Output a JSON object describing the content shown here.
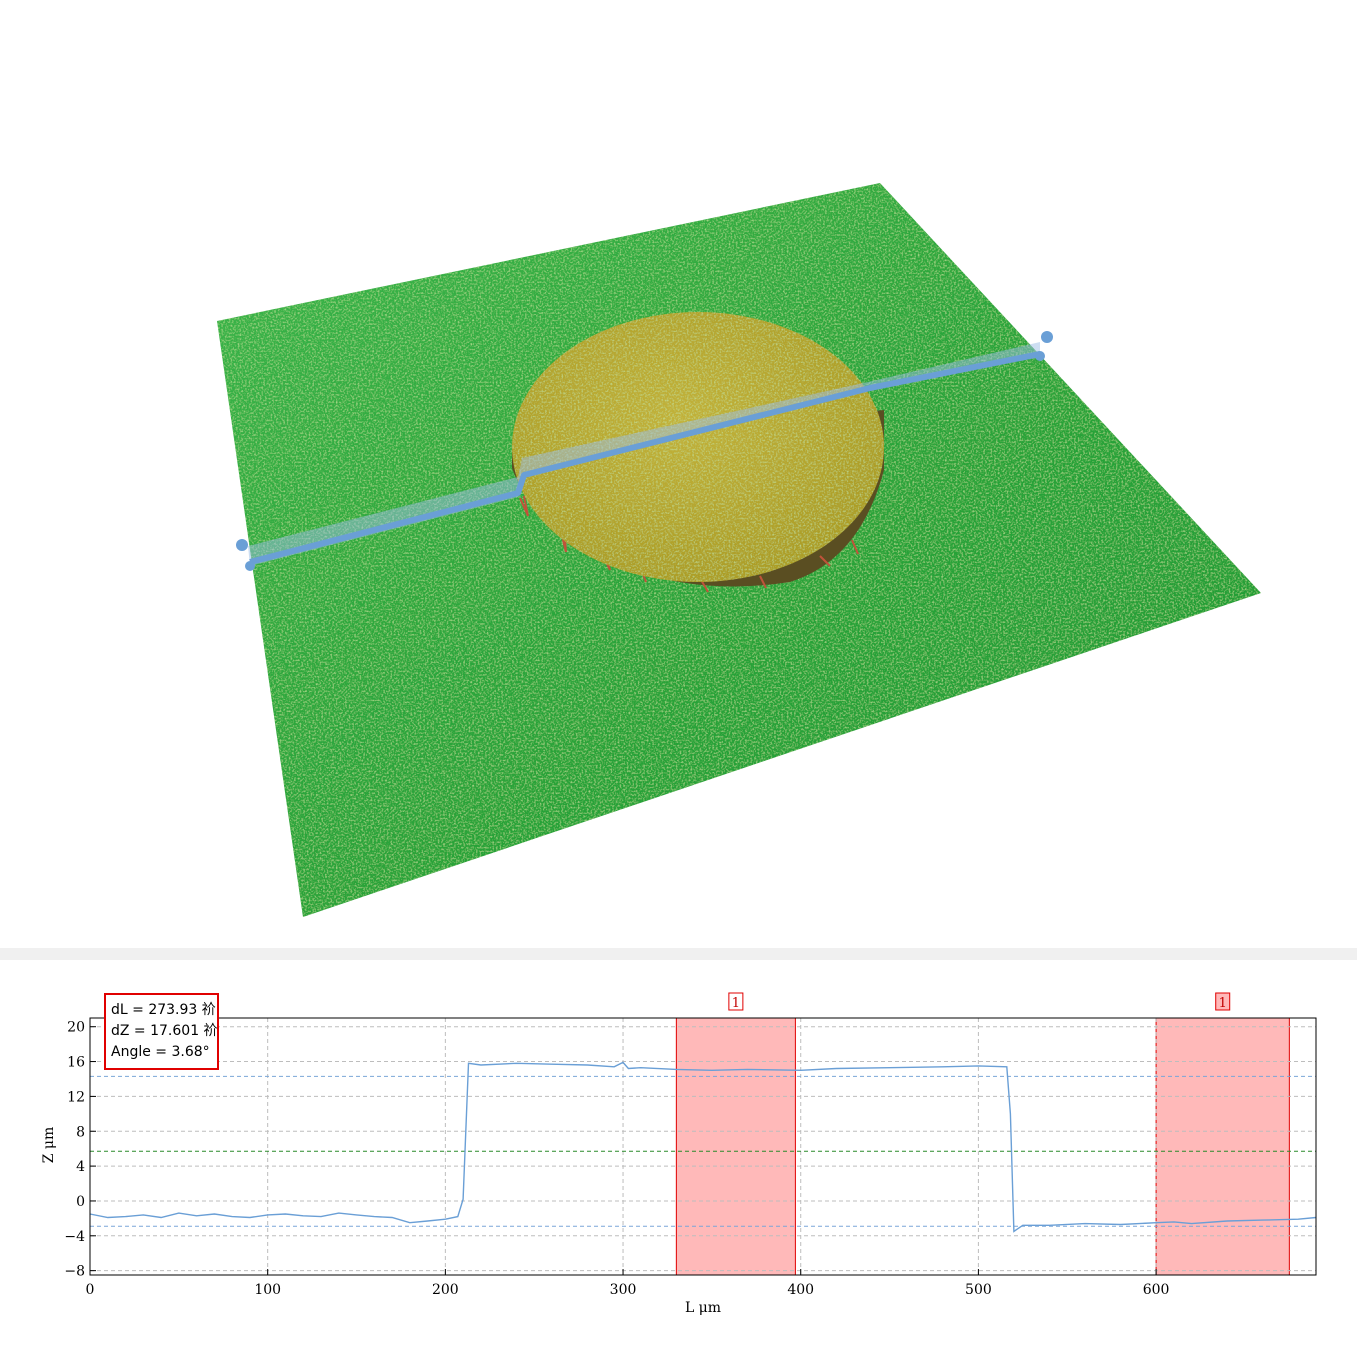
{
  "measurement": {
    "dL": "dL = 273.93 祄",
    "dZ": "dZ = 17.601 祄",
    "angle": "Angle = 3.68°"
  },
  "colors": {
    "surface_green": "#2aa43a",
    "pad_yellow": "#b5a52a",
    "profile_line": "#6a9fd6",
    "reference_band": "#ffb9b9",
    "reference_border": "#e00000",
    "mean_line": "#2a8a2a"
  },
  "chart_data": {
    "type": "line",
    "xlabel": "L  μm",
    "ylabel": "Z  μm",
    "xlim": [
      0,
      690
    ],
    "ylim": [
      -8.5,
      21
    ],
    "x_ticks": [
      "0",
      "100",
      "200",
      "300",
      "400",
      "500",
      "600"
    ],
    "y_ticks": [
      "20",
      "16",
      "12",
      "8",
      "4",
      "0",
      "−4",
      "−8"
    ],
    "grid": true,
    "series": [
      {
        "x": [
          0,
          10,
          20,
          30,
          40,
          50,
          60,
          70,
          80,
          90,
          100,
          110,
          120,
          130,
          140,
          150,
          160,
          170,
          180,
          190,
          200,
          207,
          210,
          213,
          220,
          240,
          260,
          280,
          295,
          300,
          303,
          310,
          330,
          350,
          370,
          400,
          420,
          450,
          480,
          500,
          516,
          518,
          520,
          525,
          540,
          560,
          580,
          600,
          610,
          620,
          640,
          660,
          680,
          690
        ],
        "y": [
          -1.5,
          -1.9,
          -1.8,
          -1.6,
          -1.9,
          -1.4,
          -1.7,
          -1.5,
          -1.8,
          -1.9,
          -1.6,
          -1.5,
          -1.7,
          -1.8,
          -1.4,
          -1.6,
          -1.8,
          -1.9,
          -2.5,
          -2.3,
          -2.1,
          -1.8,
          0.2,
          15.8,
          15.6,
          15.8,
          15.7,
          15.6,
          15.4,
          15.9,
          15.2,
          15.3,
          15.1,
          15.0,
          15.1,
          15.0,
          15.2,
          15.3,
          15.4,
          15.5,
          15.4,
          10.0,
          -3.5,
          -2.8,
          -2.8,
          -2.6,
          -2.7,
          -2.5,
          -2.4,
          -2.6,
          -2.3,
          -2.2,
          -2.1,
          -1.9
        ]
      }
    ],
    "reference_lines": [
      14.3,
      5.7,
      -2.9
    ],
    "reference_regions": [
      {
        "label": "1",
        "x0": 330,
        "x1": 397
      },
      {
        "label": "1",
        "x0": 600,
        "x1": 675
      }
    ]
  }
}
